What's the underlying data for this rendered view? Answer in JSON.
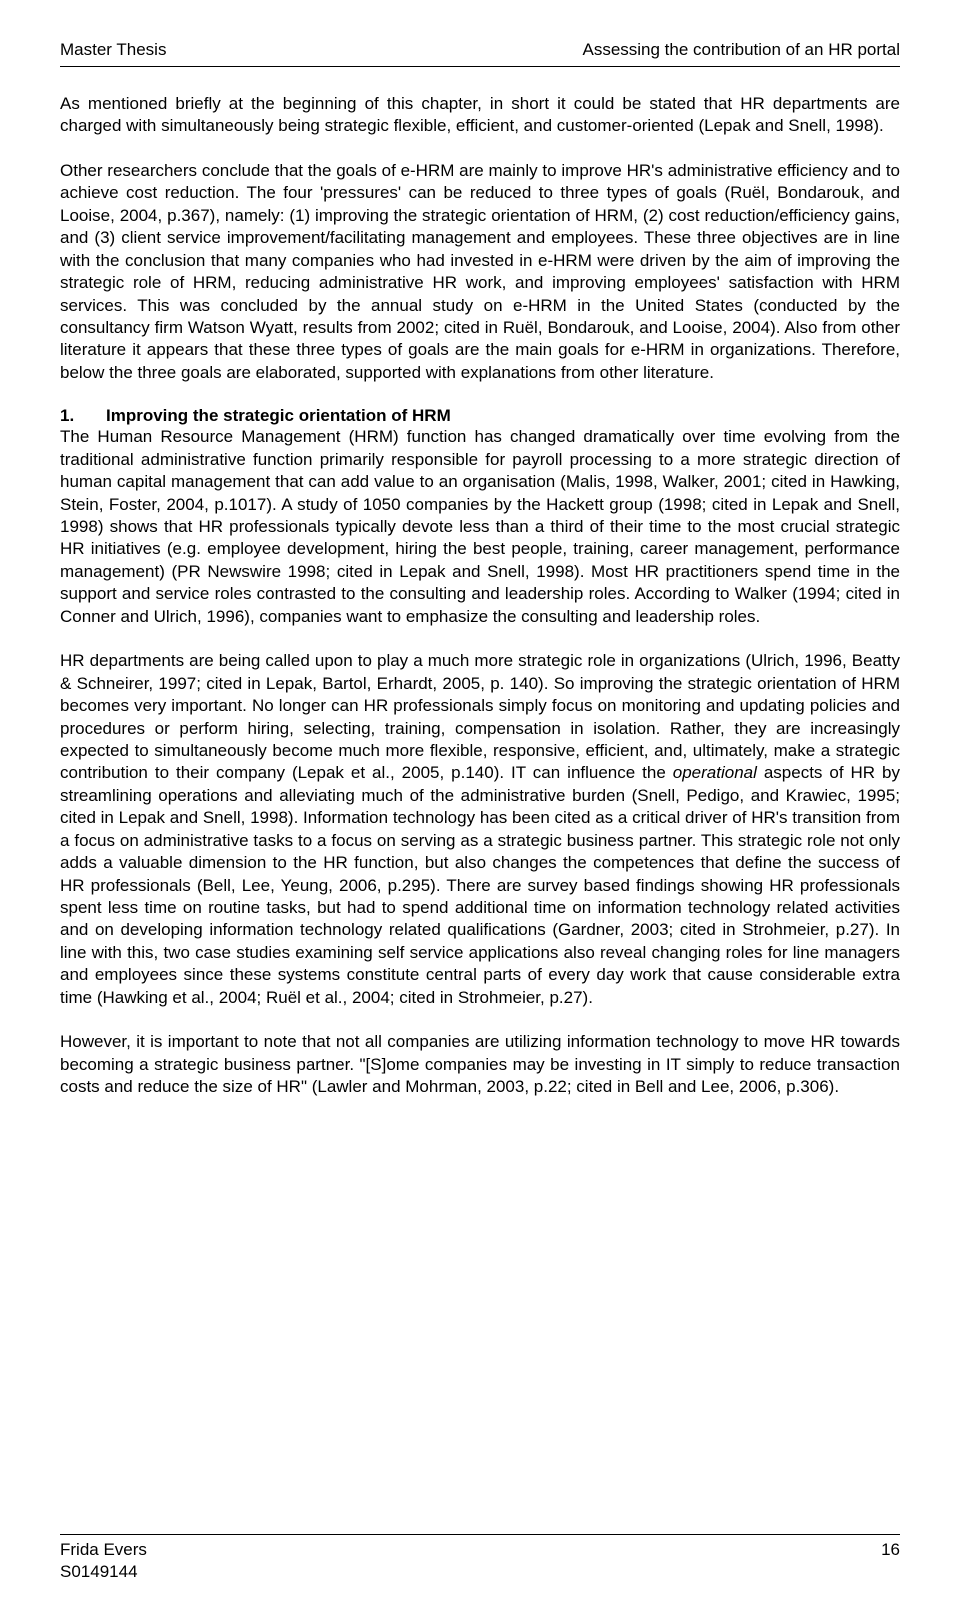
{
  "header": {
    "left": "Master Thesis",
    "right": "Assessing the contribution of an HR portal"
  },
  "paragraph1": "As mentioned briefly at the beginning of this chapter, in short it could be stated that HR departments are charged with simultaneously being strategic flexible, efficient, and customer-oriented (Lepak and Snell, 1998).",
  "paragraph2": "Other researchers conclude that the goals of e-HRM are mainly to improve HR's administrative efficiency and to achieve cost reduction. The four 'pressures' can be reduced to three types of goals (Ruël, Bondarouk, and Looise, 2004, p.367), namely: (1) improving the strategic orientation of HRM, (2) cost reduction/efficiency gains, and (3) client service improvement/facilitating management and employees. These three objectives are in line with the conclusion that many companies who had invested in e-HRM were driven by the aim of improving the strategic role of HRM, reducing administrative HR work, and improving employees' satisfaction with HRM services. This was concluded by the annual study on e-HRM in the United States (conducted by the consultancy firm Watson Wyatt, results from 2002; cited in Ruël, Bondarouk, and Looise, 2004). Also from other literature it appears that these three types of goals are the main goals for e-HRM in organizations. Therefore, below the three goals are elaborated, supported with explanations from other literature.",
  "section1": {
    "number": "1.",
    "title": "Improving the strategic orientation of HRM"
  },
  "paragraph3": "The Human Resource Management (HRM) function has changed dramatically over time evolving from the traditional administrative function primarily responsible for payroll processing to a more strategic direction of human capital management that can add value to an organisation (Malis, 1998, Walker, 2001; cited in Hawking, Stein, Foster, 2004, p.1017). A study of 1050 companies by the Hackett group (1998; cited in Lepak and Snell, 1998) shows that HR professionals typically devote less than a third of their time to the most crucial strategic HR initiatives (e.g. employee development, hiring the best people, training, career management, performance management) (PR Newswire 1998; cited in Lepak and Snell, 1998). Most HR practitioners spend time in the support and service roles contrasted to the consulting and leadership roles. According to Walker (1994; cited in Conner and Ulrich, 1996), companies want to emphasize the consulting and leadership roles.",
  "paragraph4_part1": "HR departments are being called upon to play a much more strategic role in organizations (Ulrich, 1996, Beatty & Schneirer, 1997; cited in Lepak, Bartol, Erhardt, 2005, p. 140). So improving the strategic orientation of HRM becomes very important. No longer can HR professionals simply focus on monitoring and updating policies and procedures or perform hiring, selecting, training, compensation in isolation. Rather, they are increasingly expected to simultaneously become much more flexible, responsive, efficient, and, ultimately, make a strategic contribution to their company (Lepak et al., 2005, p.140). IT can influence the ",
  "paragraph4_italic": "operational",
  "paragraph4_part2": " aspects of HR by streamlining operations and alleviating much of the administrative burden (Snell, Pedigo, and Krawiec, 1995; cited in Lepak and Snell, 1998). Information technology has been cited as a critical driver of HR's transition from a focus on administrative tasks to a focus on serving as a strategic business partner. This strategic role not only adds a valuable dimension to the HR function, but also changes the competences that define the success of HR professionals (Bell, Lee, Yeung, 2006, p.295). There are survey based findings showing HR professionals spent less time on routine tasks, but had to spend additional time on information technology related activities and on developing information technology related qualifications (Gardner, 2003; cited in Strohmeier, p.27). In line with this, two case studies examining self service applications also reveal changing roles for line managers and employees since these systems constitute central parts of every day work that cause considerable extra time (Hawking et al., 2004; Ruël et al., 2004; cited in Strohmeier, p.27).",
  "paragraph5": "However, it is important to note that not all companies are utilizing information technology to move HR towards becoming a strategic business partner. \"[S]ome companies may be investing in IT simply to reduce transaction costs and reduce the size of HR\" (Lawler and Mohrman, 2003, p.22; cited in Bell and Lee, 2006, p.306).",
  "footer": {
    "author": "Frida Evers",
    "id": "S0149144",
    "page": "16"
  }
}
